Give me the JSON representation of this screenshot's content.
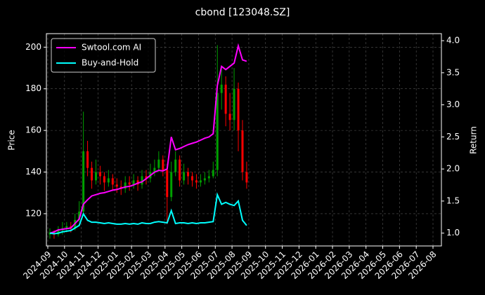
{
  "chart_data": {
    "type": "candlestick",
    "title": "cbond [123048.SZ]",
    "ylabel": "Price",
    "y2label": "Return",
    "grid": true,
    "legend": "upper left",
    "up_color": "#00a000",
    "down_color": "#ff0000",
    "xticks": [
      "2024-09",
      "2024-10",
      "2024-11",
      "2024-12",
      "2025-01",
      "2025-02",
      "2025-03",
      "2025-04",
      "2025-05",
      "2025-06",
      "2025-07",
      "2025-08",
      "2025-09",
      "2025-10",
      "2025-11",
      "2025-12",
      "2026-01",
      "2026-02",
      "2026-03",
      "2026-04",
      "2026-05",
      "2026-06",
      "2026-07",
      "2026-08"
    ],
    "xlim": [
      "2024-09",
      "2026-08"
    ],
    "ylim": [
      104.5,
      206.5
    ],
    "yticks": [
      120,
      140,
      160,
      180,
      200
    ],
    "y2lim": [
      0.8,
      4.11
    ],
    "y2ticks": [
      {
        "value": 1,
        "label": "1.0"
      },
      {
        "value": 1.5,
        "label": "1.5"
      },
      {
        "value": 2,
        "label": "2.0"
      },
      {
        "value": 2.5,
        "label": "2.5"
      },
      {
        "value": 3,
        "label": "3.0"
      },
      {
        "value": 3.5,
        "label": "3.5"
      },
      {
        "value": 4,
        "label": "4.0"
      }
    ],
    "x": [
      "2024-09",
      "2024-09",
      "2024-09",
      "2024-09",
      "2024-10",
      "2024-10",
      "2024-10",
      "2024-10",
      "2024-11",
      "2024-11",
      "2024-11",
      "2024-11",
      "2024-12",
      "2024-12",
      "2024-12",
      "2024-12",
      "2025-01",
      "2025-01",
      "2025-01",
      "2025-01",
      "2025-02",
      "2025-02",
      "2025-02",
      "2025-02",
      "2025-03",
      "2025-03",
      "2025-03",
      "2025-03",
      "2025-04",
      "2025-04",
      "2025-04",
      "2025-04",
      "2025-05",
      "2025-05",
      "2025-05",
      "2025-05",
      "2025-06",
      "2025-06",
      "2025-06",
      "2025-06",
      "2025-07",
      "2025-07",
      "2025-07",
      "2025-07",
      "2025-08",
      "2025-08",
      "2025-08",
      "2025-08"
    ],
    "open": [
      110,
      111,
      110,
      112,
      113,
      114,
      113,
      117,
      121,
      150,
      142,
      136,
      140,
      138,
      135,
      137,
      134,
      133,
      132,
      135,
      134,
      136,
      134,
      138,
      137,
      140,
      142,
      146,
      141,
      128,
      140,
      146,
      136,
      140,
      138,
      136,
      135,
      136,
      137,
      138,
      141,
      178,
      182,
      168,
      165,
      180,
      160,
      140
    ],
    "high": [
      113,
      112,
      114,
      116,
      116,
      116,
      120,
      126,
      169,
      155,
      145,
      146,
      143,
      140,
      141,
      139,
      137,
      136,
      138,
      138,
      139,
      138,
      141,
      141,
      144,
      146,
      150,
      148,
      144,
      145,
      150,
      148,
      144,
      142,
      140,
      139,
      139,
      140,
      141,
      145,
      201,
      190,
      186,
      178,
      190,
      183,
      165,
      145
    ],
    "low": [
      108,
      108,
      109,
      110,
      111,
      111,
      112,
      116,
      119,
      138,
      132,
      134,
      134,
      131,
      133,
      131,
      130,
      129,
      130,
      131,
      132,
      131,
      132,
      134,
      135,
      138,
      140,
      138,
      115,
      126,
      138,
      133,
      134,
      134,
      133,
      132,
      133,
      134,
      135,
      137,
      138,
      170,
      162,
      160,
      160,
      150,
      136,
      132
    ],
    "close": [
      111,
      110,
      112,
      113,
      114,
      113,
      117,
      121,
      150,
      142,
      136,
      140,
      138,
      135,
      137,
      134,
      133,
      132,
      135,
      134,
      136,
      134,
      138,
      137,
      140,
      142,
      146,
      141,
      128,
      140,
      146,
      136,
      140,
      138,
      136,
      135,
      136,
      137,
      138,
      141,
      178,
      182,
      168,
      165,
      180,
      160,
      140,
      135
    ],
    "series": [
      {
        "name": "Swtool.com AI",
        "color": "#ff00ff",
        "axis": "y2",
        "values": [
          1.0,
          1.02,
          1.05,
          1.06,
          1.07,
          1.08,
          1.15,
          1.22,
          1.45,
          1.52,
          1.58,
          1.6,
          1.62,
          1.63,
          1.65,
          1.67,
          1.68,
          1.7,
          1.72,
          1.73,
          1.75,
          1.78,
          1.8,
          1.85,
          1.9,
          1.95,
          1.98,
          1.97,
          2.0,
          2.5,
          2.3,
          2.32,
          2.35,
          2.38,
          2.4,
          2.42,
          2.45,
          2.48,
          2.5,
          2.55,
          3.3,
          3.6,
          3.55,
          3.6,
          3.65,
          3.92,
          3.7,
          3.68
        ]
      },
      {
        "name": "Buy-and-Hold",
        "color": "#00ffff",
        "axis": "y2",
        "values": [
          1.0,
          0.99,
          1.0,
          1.02,
          1.03,
          1.04,
          1.08,
          1.12,
          1.3,
          1.2,
          1.17,
          1.17,
          1.16,
          1.15,
          1.16,
          1.15,
          1.14,
          1.14,
          1.15,
          1.14,
          1.15,
          1.14,
          1.16,
          1.15,
          1.15,
          1.17,
          1.18,
          1.17,
          1.16,
          1.35,
          1.15,
          1.16,
          1.16,
          1.15,
          1.16,
          1.15,
          1.16,
          1.16,
          1.17,
          1.18,
          1.6,
          1.45,
          1.48,
          1.45,
          1.43,
          1.5,
          1.2,
          1.12
        ]
      }
    ]
  }
}
